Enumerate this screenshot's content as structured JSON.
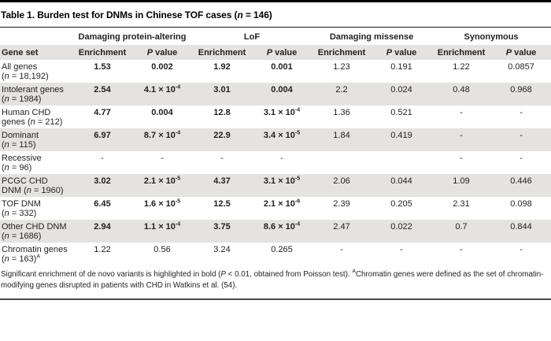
{
  "colors": {
    "stripe": "#e4e3e1",
    "text": "#231f20",
    "title_rule": "#1a1a1a",
    "bottom_rule": "#4a4a4a",
    "top_bar": "#000000"
  },
  "title": {
    "parts": [
      {
        "t": "Table 1. Burden test for DNMs in Chinese TOF cases ("
      },
      {
        "t": "n",
        "i": true
      },
      {
        "t": " = 146)"
      }
    ]
  },
  "table": {
    "group_headers": [
      "Damaging protein-altering",
      "LoF",
      "Damaging missense",
      "Synonymous"
    ],
    "column_headers": {
      "gene_set": "Gene set",
      "enrichment": "Enrichment",
      "p_value_parts": [
        {
          "t": "P",
          "i": true
        },
        {
          "t": " value"
        }
      ]
    },
    "rows": [
      {
        "label": {
          "name": "All genes",
          "n": "18,192",
          "note": ""
        },
        "shaded": false,
        "cells": [
          {
            "t": "1.53",
            "b": true
          },
          {
            "t": "0.002",
            "b": true
          },
          {
            "t": "1.92",
            "b": true
          },
          {
            "t": "0.001",
            "b": true
          },
          {
            "t": "1.23"
          },
          {
            "t": "0.191"
          },
          {
            "t": "1.22"
          },
          {
            "t": "0.0857"
          }
        ]
      },
      {
        "label": {
          "name": "Intolerant genes",
          "n": "1984",
          "note": ""
        },
        "shaded": true,
        "cells": [
          {
            "t": "2.54",
            "b": true
          },
          {
            "t": "4.1 × 10",
            "sup": "-4",
            "b": true
          },
          {
            "t": "3.01",
            "b": true
          },
          {
            "t": "0.004",
            "b": true
          },
          {
            "t": "2.2"
          },
          {
            "t": "0.024"
          },
          {
            "t": "0.48"
          },
          {
            "t": "0.968"
          }
        ]
      },
      {
        "label": {
          "name": "Human CHD genes",
          "n": "212",
          "note": ""
        },
        "shaded": false,
        "cells": [
          {
            "t": "4.77",
            "b": true
          },
          {
            "t": "0.004",
            "b": true
          },
          {
            "t": "12.8",
            "b": true
          },
          {
            "t": "3.1 × 10",
            "sup": "-4",
            "b": true
          },
          {
            "t": "1.36"
          },
          {
            "t": "0.521"
          },
          {
            "t": "-"
          },
          {
            "t": "-"
          }
        ]
      },
      {
        "label": {
          "name": "Dominant",
          "n": "115",
          "note": ""
        },
        "shaded": true,
        "cells": [
          {
            "t": "6.97",
            "b": true
          },
          {
            "t": "8.7 × 10",
            "sup": "-4",
            "b": true
          },
          {
            "t": "22.9",
            "b": true
          },
          {
            "t": "3.4 × 10",
            "sup": "-5",
            "b": true
          },
          {
            "t": "1.84"
          },
          {
            "t": "0.419"
          },
          {
            "t": "-"
          },
          {
            "t": "-"
          }
        ]
      },
      {
        "label": {
          "name": "Recessive",
          "n": "96",
          "note": ""
        },
        "shaded": false,
        "cells": [
          {
            "t": "-"
          },
          {
            "t": "-"
          },
          {
            "t": "-"
          },
          {
            "t": "-"
          },
          {
            "t": ""
          },
          {
            "t": ""
          },
          {
            "t": "-"
          },
          {
            "t": "-"
          }
        ]
      },
      {
        "label": {
          "name": "PCGC CHD DNM",
          "n": "1960",
          "note": ""
        },
        "shaded": true,
        "cells": [
          {
            "t": "3.02",
            "b": true
          },
          {
            "t": "2.1 × 10",
            "sup": "-5",
            "b": true
          },
          {
            "t": "4.37",
            "b": true
          },
          {
            "t": "3.1 × 10",
            "sup": "-5",
            "b": true
          },
          {
            "t": "2.06"
          },
          {
            "t": "0.044"
          },
          {
            "t": "1.09"
          },
          {
            "t": "0.446"
          }
        ]
      },
      {
        "label": {
          "name": "TOF DNM",
          "n": "332",
          "note": ""
        },
        "shaded": false,
        "cells": [
          {
            "t": "6.45",
            "b": true
          },
          {
            "t": "1.6 × 10",
            "sup": "-5",
            "b": true
          },
          {
            "t": "12.5",
            "b": true
          },
          {
            "t": "2.1 × 10",
            "sup": "-6",
            "b": true
          },
          {
            "t": "2.39"
          },
          {
            "t": "0.205"
          },
          {
            "t": "2.31"
          },
          {
            "t": "0.098"
          }
        ]
      },
      {
        "label": {
          "name": "Other CHD DNM",
          "n": "1686",
          "note": ""
        },
        "shaded": true,
        "cells": [
          {
            "t": "2.94",
            "b": true
          },
          {
            "t": "1.1 × 10",
            "sup": "-4",
            "b": true
          },
          {
            "t": "3.75",
            "b": true
          },
          {
            "t": "8.6 × 10",
            "sup": "-4",
            "b": true
          },
          {
            "t": "2.47"
          },
          {
            "t": "0.022"
          },
          {
            "t": "0.7"
          },
          {
            "t": "0.844"
          }
        ]
      },
      {
        "label": {
          "name": "Chromatin genes",
          "n": "163",
          "note": "A"
        },
        "shaded": false,
        "cells": [
          {
            "t": "1.22"
          },
          {
            "t": "0.56"
          },
          {
            "t": "3.24"
          },
          {
            "t": "0.265"
          },
          {
            "t": "-"
          },
          {
            "t": "-"
          },
          {
            "t": "-"
          },
          {
            "t": "-"
          }
        ]
      }
    ]
  },
  "footnote": {
    "parts": [
      {
        "t": "Significant enrichment of de novo variants is highlighted in bold ("
      },
      {
        "t": "P",
        "i": true
      },
      {
        "t": " < 0.01, obtained from Poisson test). "
      },
      {
        "t": "A",
        "sup": true
      },
      {
        "t": "Chromatin genes were defined as the set of chromatin-modifying genes disrupted in patients with CHD in Watkins et al. (54)."
      }
    ]
  }
}
